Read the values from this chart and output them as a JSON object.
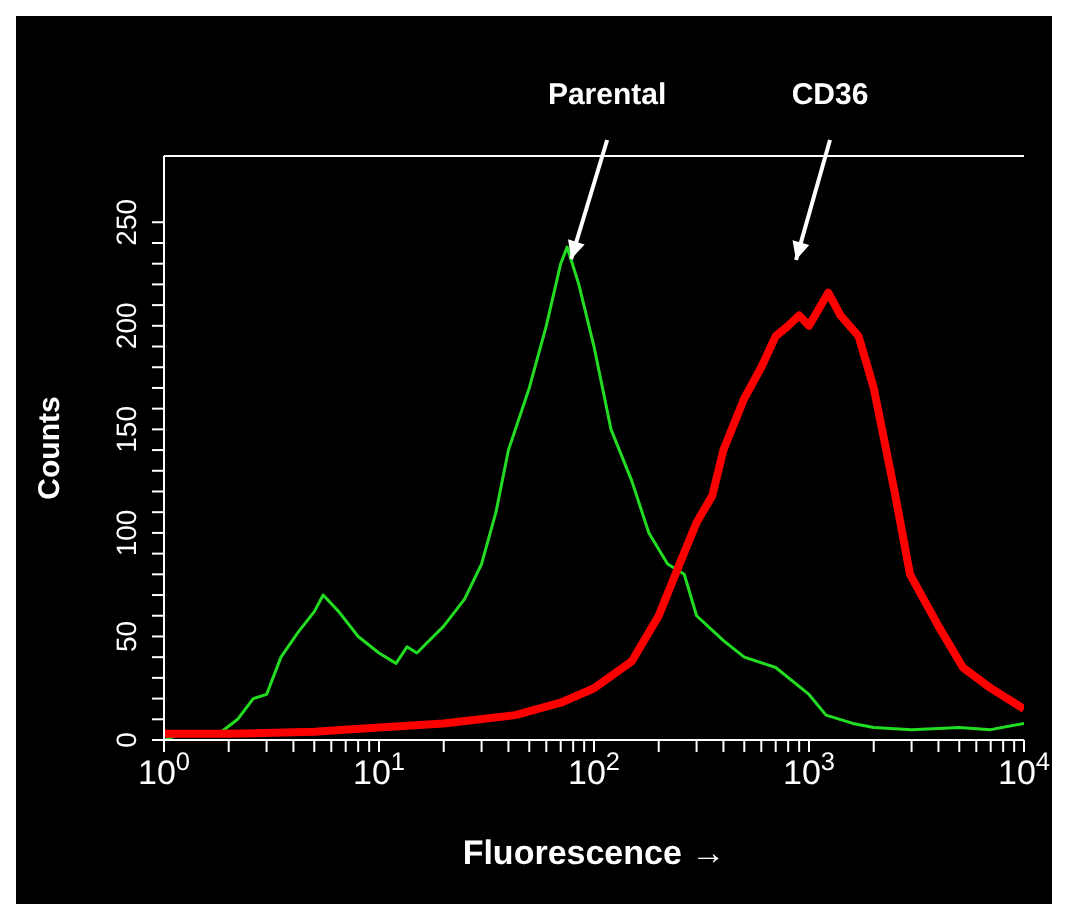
{
  "chart_data": {
    "type": "line",
    "xlabel": "Fluorescence →",
    "ylabel": "Counts",
    "log": "x",
    "marker": "none",
    "line_style": "solid",
    "xlim": [
      1,
      10000
    ],
    "ylim": [
      0,
      282
    ],
    "xticks": [
      {
        "value": 1,
        "label": "10$^{0}$"
      },
      {
        "value": 2,
        "label": null
      },
      {
        "value": 3,
        "label": null
      },
      {
        "value": 4,
        "label": null
      },
      {
        "value": 5,
        "label": null
      },
      {
        "value": 6,
        "label": null
      },
      {
        "value": 7,
        "label": null
      },
      {
        "value": 8,
        "label": null
      },
      {
        "value": 9,
        "label": null
      },
      {
        "value": 10,
        "label": "10$^{1}$"
      },
      {
        "value": 20,
        "label": null
      },
      {
        "value": 30,
        "label": null
      },
      {
        "value": 40,
        "label": null
      },
      {
        "value": 50,
        "label": null
      },
      {
        "value": 60,
        "label": null
      },
      {
        "value": 70,
        "label": null
      },
      {
        "value": 80,
        "label": null
      },
      {
        "value": 90,
        "label": null
      },
      {
        "value": 100,
        "label": "10$^{2}$"
      },
      {
        "value": 200,
        "label": null
      },
      {
        "value": 300,
        "label": null
      },
      {
        "value": 400,
        "label": null
      },
      {
        "value": 500,
        "label": null
      },
      {
        "value": 600,
        "label": null
      },
      {
        "value": 700,
        "label": null
      },
      {
        "value": 800,
        "label": null
      },
      {
        "value": 900,
        "label": null
      },
      {
        "value": 1000,
        "label": "10$^{3}$"
      },
      {
        "value": 2000,
        "label": null
      },
      {
        "value": 3000,
        "label": null
      },
      {
        "value": 4000,
        "label": null
      },
      {
        "value": 5000,
        "label": null
      },
      {
        "value": 6000,
        "label": null
      },
      {
        "value": 7000,
        "label": null
      },
      {
        "value": 8000,
        "label": null
      },
      {
        "value": 9000,
        "label": null
      },
      {
        "value": 10000,
        "label": "10$^{4}$"
      }
    ],
    "yticks": [
      0,
      {
        "value": 10,
        "label": null
      },
      {
        "value": 20,
        "label": null
      },
      {
        "value": 30,
        "label": null
      },
      {
        "value": 40,
        "label": null
      },
      50,
      {
        "value": 60,
        "label": null
      },
      {
        "value": 70,
        "label": null
      },
      {
        "value": 80,
        "label": null
      },
      {
        "value": 90,
        "label": null
      },
      100,
      {
        "value": 110,
        "label": null
      },
      {
        "value": 120,
        "label": null
      },
      {
        "value": 130,
        "label": null
      },
      {
        "value": 140,
        "label": null
      },
      150,
      {
        "value": 160,
        "label": null
      },
      {
        "value": 170,
        "label": null
      },
      {
        "value": 180,
        "label": null
      },
      {
        "value": 190,
        "label": null
      },
      200,
      {
        "value": 210,
        "label": null
      },
      {
        "value": 220,
        "label": null
      },
      {
        "value": 230,
        "label": null
      },
      {
        "value": 240,
        "label": null
      },
      250
    ],
    "annotations": [
      {
        "text": "Parental",
        "x": 75,
        "y": 238
      },
      "CD36"
    ],
    "series": [
      {
        "color": "#22dd22",
        "x": [
          1,
          1.2,
          1.5,
          1.8,
          2.2,
          2.6,
          3,
          3.5,
          4.2,
          5,
          5.5,
          6.5,
          8,
          10,
          12,
          13.5,
          15,
          20,
          25,
          30,
          35,
          40,
          50,
          60,
          70,
          75,
          85,
          100,
          120,
          150,
          180,
          220,
          263,
          300,
          400,
          500,
          700,
          1000,
          1200,
          1600,
          2000,
          3000,
          5000,
          7000,
          10000
        ],
        "values": [
          0,
          3,
          4,
          3,
          10,
          20,
          22,
          40,
          52,
          62,
          70,
          62,
          50,
          42,
          37,
          45,
          42,
          55,
          68,
          85,
          110,
          140,
          170,
          200,
          230,
          238,
          220,
          190,
          150,
          125,
          100,
          85,
          80,
          60,
          48,
          40,
          35,
          22,
          12,
          8,
          6,
          5,
          6,
          5,
          8
        ]
      },
      {
        "color": "#ff0000",
        "x": [
          1,
          2,
          5,
          10,
          20,
          43,
          70,
          100,
          150,
          200,
          250,
          300,
          355,
          400,
          500,
          600,
          700,
          800,
          900,
          1000,
          1230,
          1400,
          1700,
          2000,
          2500,
          2950,
          4000,
          5200,
          7000,
          10000
        ],
        "values": [
          3,
          3,
          4,
          6,
          8,
          12,
          18,
          25,
          38,
          60,
          85,
          105,
          118,
          140,
          165,
          180,
          195,
          200,
          205,
          200,
          216,
          205,
          195,
          170,
          120,
          80,
          55,
          35,
          25,
          15
        ]
      }
    ]
  }
}
